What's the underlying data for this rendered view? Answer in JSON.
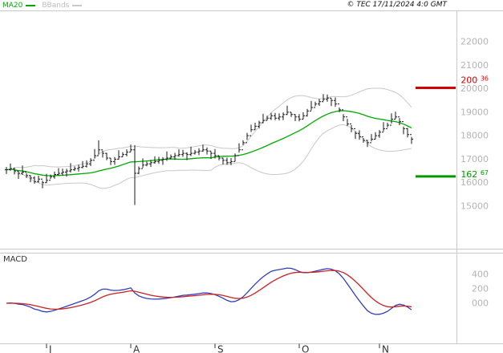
{
  "legend": {
    "ma20_label": "MA20",
    "bbands_label": "BBands"
  },
  "header": {
    "copyright": "© TEC 17/11/2024 4:0 GMT"
  },
  "macd_panel": {
    "title": "MACD"
  },
  "colors": {
    "ma20": "#00aa00",
    "bbands": "#c8c8c8",
    "bbands_text": "#bdbdbd",
    "bars": "#1a1a1a",
    "macd_line": "#2f3fbf",
    "macd_signal": "#cc2222",
    "axis_text": "#b4b4b4",
    "month_text": "#333333",
    "level_resistance": "#d40000",
    "level_support": "#009900"
  },
  "chart_data": {
    "type": "candlestick",
    "title": "",
    "indicators": [
      "MA20",
      "BBands",
      "MACD"
    ],
    "price_axis": {
      "side": "right",
      "tick_labels": [
        "22000",
        "21000",
        "20000",
        "19000",
        "18000",
        "17000",
        "16000",
        "15000"
      ],
      "tick_values": [
        220,
        210,
        200,
        190,
        180,
        170,
        160,
        150
      ],
      "range": [
        148,
        223
      ]
    },
    "levels": [
      {
        "name": "resistance",
        "value": 200.36,
        "label_main": "200",
        "label_frac": "36",
        "color": "#d40000"
      },
      {
        "name": "support",
        "value": 162.67,
        "label_main": "162",
        "label_frac": "67",
        "color": "#009900"
      }
    ],
    "x_axis": {
      "month_labels": [
        "J",
        "A",
        "S",
        "O",
        "N"
      ],
      "month_bar_index": [
        10,
        31,
        52,
        73,
        93
      ]
    },
    "bars": [
      [
        166.7,
        163.7,
        165.5
      ],
      [
        168.2,
        165.1,
        166.0
      ],
      [
        166.5,
        163.5,
        165.0
      ],
      [
        164.9,
        161.6,
        164.0
      ],
      [
        167.3,
        163.3,
        164.5
      ],
      [
        164.0,
        162.0,
        163.0
      ],
      [
        163.2,
        160.2,
        162.0
      ],
      [
        162.7,
        159.6,
        160.5
      ],
      [
        163.0,
        160.0,
        161.5
      ],
      [
        160.9,
        157.6,
        160.0
      ],
      [
        163.8,
        159.8,
        161.0
      ],
      [
        163.5,
        161.5,
        162.5
      ],
      [
        164.7,
        161.7,
        163.5
      ],
      [
        166.2,
        163.1,
        164.0
      ],
      [
        166.0,
        163.0,
        164.5
      ],
      [
        165.9,
        162.6,
        165.0
      ],
      [
        168.3,
        164.3,
        165.5
      ],
      [
        167.0,
        165.0,
        166.0
      ],
      [
        167.7,
        164.7,
        166.5
      ],
      [
        169.2,
        166.1,
        167.0
      ],
      [
        169.5,
        166.5,
        168.0
      ],
      [
        170.4,
        167.1,
        169.5
      ],
      [
        174.3,
        170.3,
        171.5
      ],
      [
        178.0,
        172.0,
        174.0
      ],
      [
        173.7,
        170.7,
        172.5
      ],
      [
        172.7,
        169.6,
        170.5
      ],
      [
        170.5,
        167.5,
        169.0
      ],
      [
        170.9,
        167.6,
        170.0
      ],
      [
        173.8,
        169.8,
        171.0
      ],
      [
        173.0,
        171.0,
        172.0
      ],
      [
        174.2,
        171.2,
        173.0
      ],
      [
        176.2,
        173.1,
        174.0
      ],
      [
        176.0,
        150.5,
        164.0
      ],
      [
        166.9,
        163.6,
        166.0
      ],
      [
        170.3,
        166.3,
        167.5
      ],
      [
        169.0,
        167.0,
        168.0
      ],
      [
        169.7,
        166.7,
        168.5
      ],
      [
        171.2,
        168.1,
        169.0
      ],
      [
        171.0,
        168.0,
        169.5
      ],
      [
        170.9,
        167.6,
        170.0
      ],
      [
        173.3,
        169.3,
        170.5
      ],
      [
        172.0,
        170.0,
        171.0
      ],
      [
        172.7,
        169.7,
        171.5
      ],
      [
        174.2,
        171.1,
        172.0
      ],
      [
        174.0,
        171.0,
        172.5
      ],
      [
        172.9,
        169.6,
        172.0
      ],
      [
        175.3,
        171.3,
        172.5
      ],
      [
        174.0,
        172.0,
        173.0
      ],
      [
        174.7,
        171.7,
        173.5
      ],
      [
        176.2,
        173.1,
        174.0
      ],
      [
        175.0,
        172.0,
        173.5
      ],
      [
        173.4,
        170.1,
        172.5
      ],
      [
        174.3,
        170.3,
        171.5
      ],
      [
        171.5,
        169.5,
        170.5
      ],
      [
        170.7,
        167.7,
        169.5
      ],
      [
        170.7,
        167.6,
        168.5
      ],
      [
        170.5,
        167.5,
        169.0
      ],
      [
        172.4,
        169.1,
        171.5
      ],
      [
        176.8,
        172.8,
        174.0
      ],
      [
        178.0,
        176.0,
        177.0
      ],
      [
        181.2,
        178.2,
        180.0
      ],
      [
        184.7,
        181.6,
        182.5
      ],
      [
        185.5,
        182.5,
        184.0
      ],
      [
        186.4,
        183.1,
        185.5
      ],
      [
        189.3,
        185.3,
        186.5
      ],
      [
        188.5,
        186.5,
        187.5
      ],
      [
        189.7,
        186.7,
        188.5
      ],
      [
        189.7,
        186.6,
        187.5
      ],
      [
        189.5,
        186.5,
        188.0
      ],
      [
        189.9,
        186.6,
        189.0
      ],
      [
        192.8,
        188.8,
        190.0
      ],
      [
        190.0,
        188.0,
        189.0
      ],
      [
        189.2,
        186.2,
        188.0
      ],
      [
        189.2,
        186.1,
        187.0
      ],
      [
        190.0,
        187.0,
        188.5
      ],
      [
        191.4,
        188.1,
        190.5
      ],
      [
        194.8,
        190.8,
        192.0
      ],
      [
        194.5,
        192.5,
        193.5
      ],
      [
        195.7,
        192.7,
        194.5
      ],
      [
        197.7,
        194.6,
        195.5
      ],
      [
        197.5,
        194.5,
        196.0
      ],
      [
        195.9,
        192.6,
        195.0
      ],
      [
        196.3,
        192.3,
        193.5
      ],
      [
        192.0,
        190.0,
        191.0
      ],
      [
        189.2,
        186.2,
        188.0
      ],
      [
        187.2,
        184.1,
        185.0
      ],
      [
        184.5,
        181.5,
        183.0
      ],
      [
        181.9,
        178.6,
        181.0
      ],
      [
        182.3,
        178.3,
        179.5
      ],
      [
        179.0,
        177.0,
        178.0
      ],
      [
        178.2,
        175.2,
        177.0
      ],
      [
        180.7,
        177.6,
        178.5
      ],
      [
        181.5,
        178.5,
        180.0
      ],
      [
        182.4,
        179.1,
        181.5
      ],
      [
        185.8,
        181.8,
        183.0
      ],
      [
        185.5,
        183.5,
        184.5
      ],
      [
        189.5,
        185.2,
        187.0
      ],
      [
        190.2,
        187.1,
        188.0
      ],
      [
        187.5,
        184.5,
        186.0
      ],
      [
        183.9,
        180.6,
        183.0
      ],
      [
        183.3,
        179.3,
        180.5
      ],
      [
        179.5,
        176.5,
        178.5
      ]
    ],
    "macd": {
      "axis_labels": [
        "400",
        "200",
        "000"
      ],
      "axis_values": [
        4,
        2,
        0
      ],
      "params": [
        12,
        26,
        9
      ],
      "range": [
        -5,
        6
      ]
    }
  }
}
